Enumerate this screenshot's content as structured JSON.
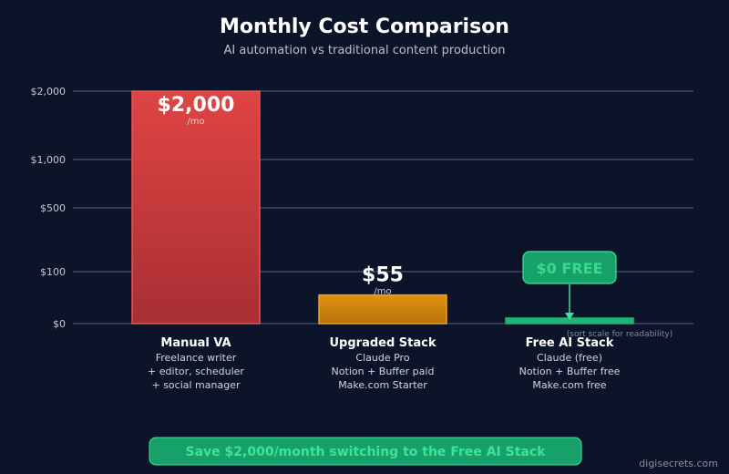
{
  "chart_data": {
    "type": "bar",
    "title": "Monthly Cost Comparison",
    "subtitle": "AI automation vs traditional content production",
    "y_ticks": [
      {
        "label": "$2,000",
        "value": 2000
      },
      {
        "label": "$1,000",
        "value": 1000
      },
      {
        "label": "$500",
        "value": 500
      },
      {
        "label": "$100",
        "value": 100
      },
      {
        "label": "$0",
        "value": 0
      }
    ],
    "grid": true,
    "categories": [
      "Manual VA",
      "Upgraded Stack",
      "Free AI Stack"
    ],
    "values": [
      2000,
      55,
      0
    ],
    "value_labels": [
      "$2,000",
      "$55",
      "$0 FREE"
    ],
    "unit_label": "/mo",
    "descriptions": [
      [
        "Freelance writer",
        "+ editor, scheduler",
        "+ social manager"
      ],
      [
        "Claude Pro",
        "Notion + Buffer paid",
        "Make.com Starter"
      ],
      [
        "Claude (free)",
        "Notion + Buffer free",
        "Make.com free"
      ]
    ],
    "colors": [
      "#d63b3b",
      "#d98a0c",
      "#1fb57a"
    ],
    "note": "(sort scale for readability)",
    "banner": "Save $2,000/month switching to the Free AI Stack",
    "credit": "digisecrets.com"
  }
}
